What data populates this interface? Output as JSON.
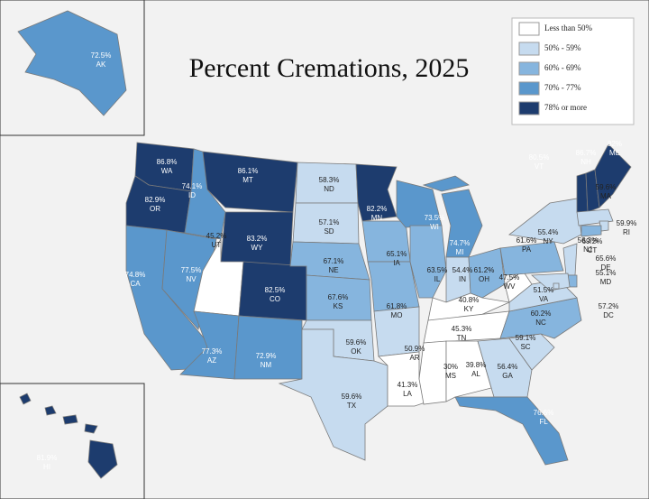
{
  "title": "Percent Cremations, 2025",
  "legend": [
    {
      "label": "Less than 50%",
      "color": "#ffffff"
    },
    {
      "label": "50% - 59%",
      "color": "#c6dbef"
    },
    {
      "label": "60% - 69%",
      "color": "#86b5de"
    },
    {
      "label": "70% - 77%",
      "color": "#5a97cc"
    },
    {
      "label": "78% or more",
      "color": "#1d3c6e"
    }
  ],
  "states": [
    {
      "abbr": "AK",
      "value": 72.5,
      "value_label": "72.5%",
      "color": "#5a97cc"
    },
    {
      "abbr": "HI",
      "value": 81.9,
      "value_label": "81.9%",
      "color": "#1d3c6e"
    },
    {
      "abbr": "WA",
      "value": 86.8,
      "value_label": "86.8%",
      "color": "#1d3c6e"
    },
    {
      "abbr": "OR",
      "value": 82.9,
      "value_label": "82.9%",
      "color": "#1d3c6e"
    },
    {
      "abbr": "CA",
      "value": 74.8,
      "value_label": "74.8%",
      "color": "#5a97cc"
    },
    {
      "abbr": "NV",
      "value": 77.5,
      "value_label": "77.5%",
      "color": "#5a97cc"
    },
    {
      "abbr": "ID",
      "value": 74.1,
      "value_label": "74.1%",
      "color": "#5a97cc"
    },
    {
      "abbr": "MT",
      "value": 86.1,
      "value_label": "86.1%",
      "color": "#1d3c6e"
    },
    {
      "abbr": "WY",
      "value": 83.2,
      "value_label": "83.2%",
      "color": "#1d3c6e"
    },
    {
      "abbr": "UT",
      "value": 45.2,
      "value_label": "45.2%",
      "color": "#ffffff"
    },
    {
      "abbr": "CO",
      "value": 82.5,
      "value_label": "82.5%",
      "color": "#1d3c6e"
    },
    {
      "abbr": "AZ",
      "value": 77.3,
      "value_label": "77.3%",
      "color": "#5a97cc"
    },
    {
      "abbr": "NM",
      "value": 72.9,
      "value_label": "72.9%",
      "color": "#5a97cc"
    },
    {
      "abbr": "ND",
      "value": 58.3,
      "value_label": "58.3%",
      "color": "#c6dbef"
    },
    {
      "abbr": "SD",
      "value": 57.1,
      "value_label": "57.1%",
      "color": "#c6dbef"
    },
    {
      "abbr": "NE",
      "value": 67.1,
      "value_label": "67.1%",
      "color": "#86b5de"
    },
    {
      "abbr": "KS",
      "value": 67.6,
      "value_label": "67.6%",
      "color": "#86b5de"
    },
    {
      "abbr": "OK",
      "value": 59.6,
      "value_label": "59.6%",
      "color": "#c6dbef"
    },
    {
      "abbr": "TX",
      "value": 59.6,
      "value_label": "59.6%",
      "color": "#c6dbef"
    },
    {
      "abbr": "MN",
      "value": 82.2,
      "value_label": "82.2%",
      "color": "#1d3c6e"
    },
    {
      "abbr": "IA",
      "value": 65.1,
      "value_label": "65.1%",
      "color": "#86b5de"
    },
    {
      "abbr": "MO",
      "value": 61.8,
      "value_label": "61.8%",
      "color": "#86b5de"
    },
    {
      "abbr": "AR",
      "value": 50.9,
      "value_label": "50.9%",
      "color": "#c6dbef"
    },
    {
      "abbr": "LA",
      "value": 41.3,
      "value_label": "41.3%",
      "color": "#ffffff"
    },
    {
      "abbr": "WI",
      "value": 73.5,
      "value_label": "73.5%",
      "color": "#5a97cc"
    },
    {
      "abbr": "IL",
      "value": 63.5,
      "value_label": "63.5%",
      "color": "#86b5de"
    },
    {
      "abbr": "MI",
      "value": 74.7,
      "value_label": "74.7%",
      "color": "#5a97cc"
    },
    {
      "abbr": "IN",
      "value": 54.4,
      "value_label": "54.4%",
      "color": "#c6dbef"
    },
    {
      "abbr": "OH",
      "value": 61.2,
      "value_label": "61.2%",
      "color": "#86b5de"
    },
    {
      "abbr": "KY",
      "value": 40.8,
      "value_label": "40.8%",
      "color": "#ffffff"
    },
    {
      "abbr": "TN",
      "value": 45.3,
      "value_label": "45.3%",
      "color": "#ffffff"
    },
    {
      "abbr": "MS",
      "value": 30,
      "value_label": "30%",
      "color": "#ffffff"
    },
    {
      "abbr": "AL",
      "value": 39.8,
      "value_label": "39.8%",
      "color": "#ffffff"
    },
    {
      "abbr": "GA",
      "value": 56.4,
      "value_label": "56.4%",
      "color": "#c6dbef"
    },
    {
      "abbr": "FL",
      "value": 76.6,
      "value_label": "76.6%",
      "color": "#5a97cc"
    },
    {
      "abbr": "SC",
      "value": 59.1,
      "value_label": "59.1%",
      "color": "#c6dbef"
    },
    {
      "abbr": "NC",
      "value": 60.2,
      "value_label": "60.2%",
      "color": "#86b5de"
    },
    {
      "abbr": "VA",
      "value": 51.5,
      "value_label": "51.5%",
      "color": "#c6dbef"
    },
    {
      "abbr": "WV",
      "value": 47.5,
      "value_label": "47.5%",
      "color": "#ffffff"
    },
    {
      "abbr": "PA",
      "value": 61.6,
      "value_label": "61.6%",
      "color": "#86b5de"
    },
    {
      "abbr": "NY",
      "value": 55.4,
      "value_label": "55.4%",
      "color": "#c6dbef"
    },
    {
      "abbr": "VT",
      "value": 80.5,
      "value_label": "80.5%",
      "color": "#1d3c6e"
    },
    {
      "abbr": "NH",
      "value": 86.7,
      "value_label": "86.7%",
      "color": "#1d3c6e"
    },
    {
      "abbr": "ME",
      "value": 82,
      "value_label": "82%",
      "color": "#1d3c6e"
    },
    {
      "abbr": "MA",
      "value": 59.6,
      "value_label": "59.6%",
      "color": "#c6dbef"
    },
    {
      "abbr": "RI",
      "value": 59.9,
      "value_label": "59.9%",
      "color": "#c6dbef"
    },
    {
      "abbr": "CT",
      "value": 69.2,
      "value_label": "69.2%",
      "color": "#86b5de"
    },
    {
      "abbr": "NJ",
      "value": 56.3,
      "value_label": "56.3%",
      "color": "#c6dbef"
    },
    {
      "abbr": "DE",
      "value": 65.6,
      "value_label": "65.6%",
      "color": "#86b5de"
    },
    {
      "abbr": "MD",
      "value": 55.1,
      "value_label": "55.1%",
      "color": "#c6dbef"
    },
    {
      "abbr": "DC",
      "value": 57.2,
      "value_label": "57.2%",
      "color": "#c6dbef"
    }
  ]
}
